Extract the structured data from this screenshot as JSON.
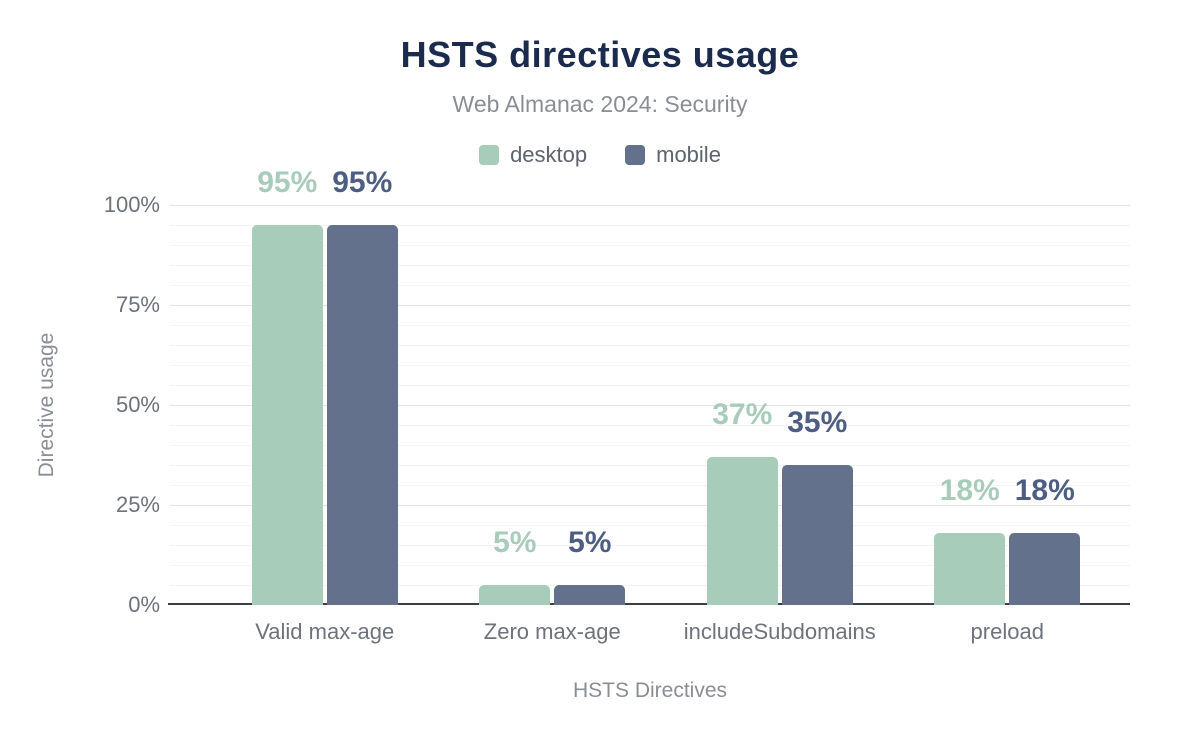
{
  "chart_data": {
    "type": "bar",
    "title": "HSTS directives usage",
    "subtitle": "Web Almanac 2024: Security",
    "xlabel": "HSTS Directives",
    "ylabel": "Directive usage",
    "categories": [
      "Valid max-age",
      "Zero max-age",
      "includeSubdomains",
      "preload"
    ],
    "series": [
      {
        "name": "desktop",
        "color": "#a8ccba",
        "label_color": "#a8ccba",
        "values": [
          95,
          5,
          37,
          18
        ],
        "labels": [
          "95%",
          "5%",
          "37%",
          "18%"
        ]
      },
      {
        "name": "mobile",
        "color": "#64718c",
        "label_color": "#4d5e82",
        "values": [
          95,
          5,
          35,
          18
        ],
        "labels": [
          "95%",
          "5%",
          "35%",
          "18%"
        ]
      }
    ],
    "ylim": [
      0,
      100
    ],
    "yticks": [
      {
        "value": 0,
        "label": "0%"
      },
      {
        "value": 25,
        "label": "25%"
      },
      {
        "value": 50,
        "label": "50%"
      },
      {
        "value": 75,
        "label": "75%"
      },
      {
        "value": 100,
        "label": "100%"
      }
    ],
    "grid": {
      "major_step": 25,
      "minor_step": 5,
      "visible": true
    },
    "legend_position": "top"
  },
  "colors": {
    "background": "#ffffff",
    "title": "#1b2b4d",
    "subtitle": "#8a8e94",
    "legend_text": "#5e646c",
    "axis_text": "#6e737b",
    "axis_title": "#8a8e94",
    "gridline_major": "#e5e5e7",
    "gridline_minor": "#f4f4f6",
    "axis_line": "#3c3f43"
  }
}
